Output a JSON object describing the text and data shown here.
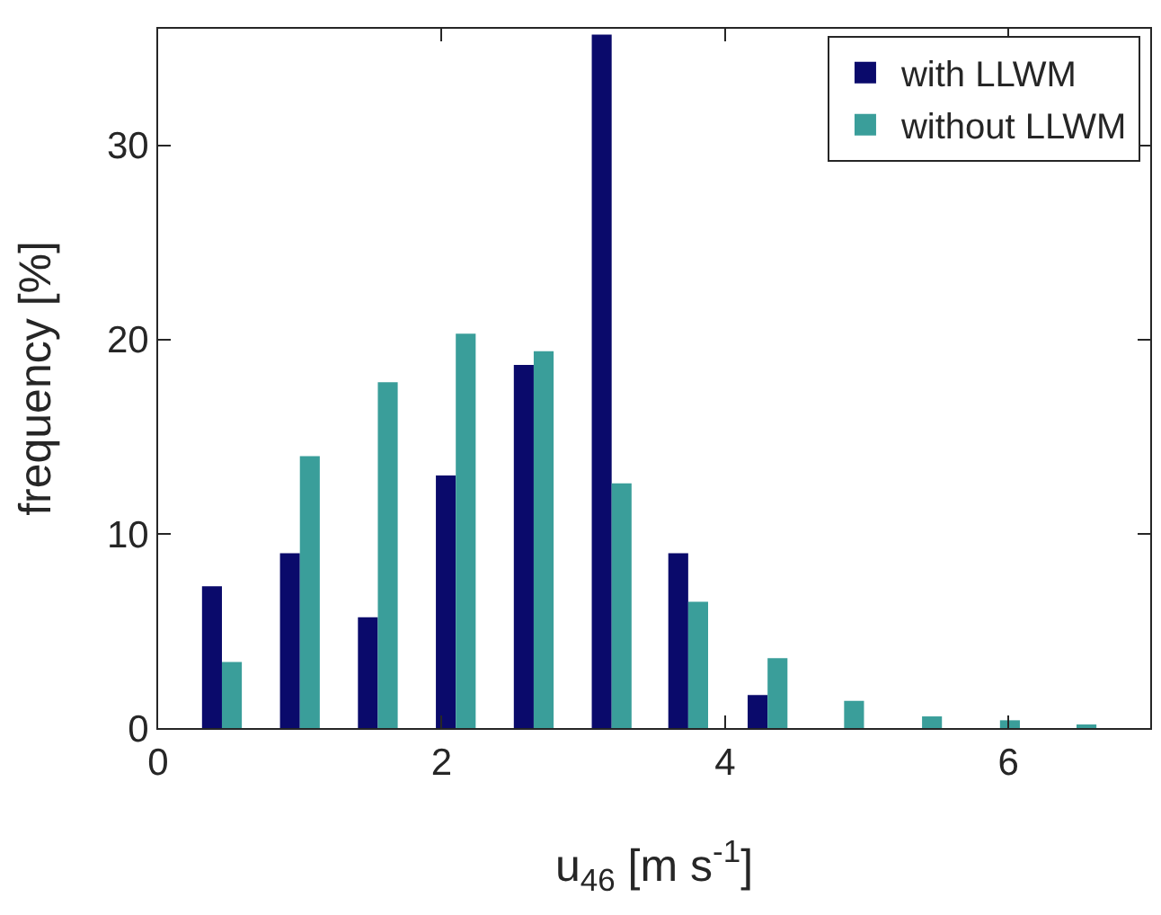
{
  "chart_data": {
    "type": "bar",
    "xlabel": "u$_{46}$ [m s$^{-1}$]",
    "ylabel": "frequency [%]",
    "x": [
      0.45,
      1.0,
      1.55,
      2.1,
      2.65,
      3.2,
      3.74,
      4.3,
      4.84,
      5.39,
      5.94,
      6.48
    ],
    "series": [
      {
        "name": "with LLWM",
        "color": "#0a0a6b",
        "values": [
          7.3,
          9,
          5.7,
          13,
          18.7,
          35.7,
          9,
          1.7,
          0,
          0,
          0,
          0
        ]
      },
      {
        "name": "without LLWM",
        "color": "#3a9e9a",
        "values": [
          3.4,
          14,
          17.8,
          20.3,
          19.4,
          12.6,
          6.5,
          3.6,
          1.4,
          0.6,
          0.4,
          0.1
        ]
      }
    ],
    "xlim": [
      0,
      7
    ],
    "xticks": [
      0,
      2,
      4,
      6
    ],
    "ylim": [
      0,
      36
    ],
    "yticks": [
      0,
      10,
      20,
      30
    ],
    "grid": false,
    "legend": "top right"
  }
}
